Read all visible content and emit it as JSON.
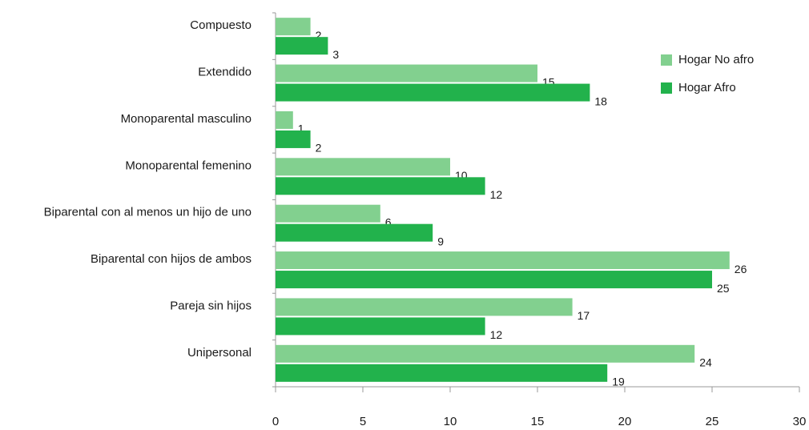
{
  "chart_data": {
    "type": "hbar",
    "categories": [
      "Compuesto",
      "Extendido",
      "Monoparental masculino",
      "Monoparental femenino",
      "Biparental con al menos un hijo de uno",
      "Biparental con hijos de ambos",
      "Pareja sin hijos",
      "Unipersonal"
    ],
    "series": [
      {
        "name": "Hogar No afro",
        "color": "#82d08f",
        "values": [
          2,
          15,
          1,
          10,
          6,
          26,
          17,
          24
        ]
      },
      {
        "name": "Hogar Afro",
        "color": "#22b24c",
        "values": [
          3,
          18,
          2,
          12,
          9,
          25,
          12,
          19
        ]
      }
    ],
    "xlim": [
      0,
      30
    ],
    "xticks": [
      0,
      5,
      10,
      15,
      20,
      25,
      30
    ],
    "legend": "upper right"
  }
}
